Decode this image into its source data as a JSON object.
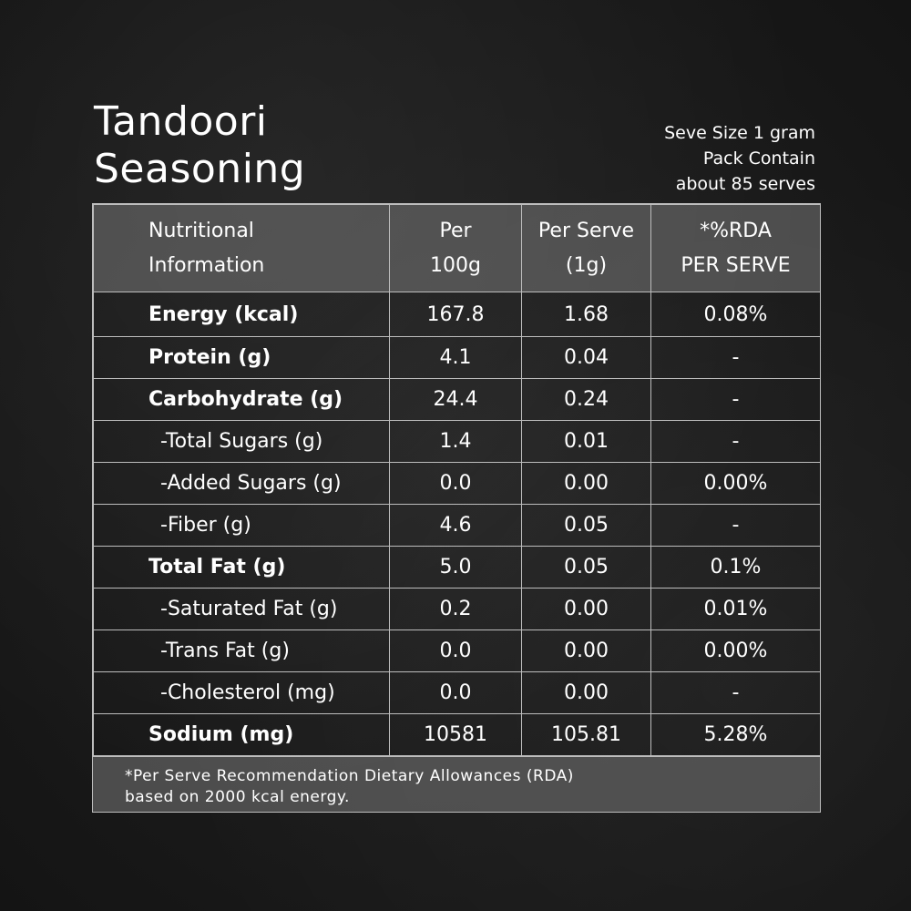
{
  "title": {
    "line1": "Tandoori",
    "line2": "Seasoning"
  },
  "serve_info": {
    "line1": "Seve Size 1 gram",
    "line2": "Pack Contain",
    "line3": "about 85  serves"
  },
  "table": {
    "headers": {
      "col1_line1": "Nutritional",
      "col1_line2": "Information",
      "col2_line1": "Per",
      "col2_line2": "100g",
      "col3_line1": "Per Serve",
      "col3_line2": "(1g)",
      "col4_line1": "*%RDA",
      "col4_line2": "PER SERVE"
    },
    "rows": [
      {
        "name": "Energy (kcal)",
        "per100": "167.8",
        "perServe": "1.68",
        "rda": "0.08%"
      },
      {
        "name": "Protein (g)",
        "per100": "4.1",
        "perServe": "0.04",
        "rda": "-"
      },
      {
        "name": "Carbohydrate (g)",
        "per100": "24.4",
        "perServe": "0.24",
        "rda": "-"
      },
      {
        "name": "-Total Sugars (g)",
        "per100": "1.4",
        "perServe": "0.01",
        "rda": "-"
      },
      {
        "name": "-Added Sugars (g)",
        "per100": "0.0",
        "perServe": "0.00",
        "rda": "0.00%"
      },
      {
        "name": "-Fiber (g)",
        "per100": "4.6",
        "perServe": "0.05",
        "rda": "-"
      },
      {
        "name": "Total Fat (g)",
        "per100": "5.0",
        "perServe": "0.05",
        "rda": "0.1%"
      },
      {
        "name": "-Saturated Fat (g)",
        "per100": "0.2",
        "perServe": "0.00",
        "rda": "0.01%"
      },
      {
        "name": "-Trans Fat (g)",
        "per100": "0.0",
        "perServe": "0.00",
        "rda": "0.00%"
      },
      {
        "name": "-Cholesterol (mg)",
        "per100": "0.0",
        "perServe": "0.00",
        "rda": "-"
      },
      {
        "name": "Sodium (mg)",
        "per100": "10581",
        "perServe": "105.81",
        "rda": "5.28%"
      }
    ]
  },
  "footnote": {
    "line1": "*Per Serve Recommendation Dietary Allowances (RDA)",
    "line2": "based on 2000 kcal energy."
  }
}
